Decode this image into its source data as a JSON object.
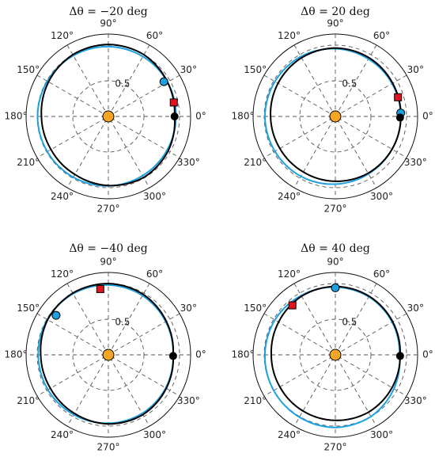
{
  "chart_data": [
    {
      "type": "polar-line",
      "title": "Δθ = −20 deg",
      "rlim": [
        0,
        1
      ],
      "rticks": [
        0.5,
        1
      ],
      "rtick_label_shown": "0.5",
      "theta_tick_labels": [
        "0°",
        "30°",
        "60°",
        "90°",
        "120°",
        "150°",
        "180°",
        "210°",
        "240°",
        "270°",
        "300°",
        "330°"
      ],
      "grid": true,
      "series": [
        {
          "color": "#1ba1e2",
          "points": [
            [
              0,
              0.95
            ],
            [
              30,
              0.96
            ],
            [
              60,
              0.97
            ],
            [
              90,
              0.98
            ],
            [
              120,
              0.985
            ],
            [
              150,
              0.99
            ],
            [
              180,
              0.995
            ],
            [
              210,
              0.99
            ],
            [
              240,
              0.985
            ],
            [
              270,
              0.975
            ],
            [
              300,
              0.96
            ],
            [
              330,
              0.95
            ],
            [
              360,
              0.95
            ]
          ]
        },
        {
          "color": "#000000",
          "points": [
            [
              0,
              0.93
            ],
            [
              30,
              0.96
            ],
            [
              60,
              1.0
            ],
            [
              90,
              1.01
            ],
            [
              120,
              1.0
            ],
            [
              150,
              0.97
            ],
            [
              180,
              0.94
            ],
            [
              210,
              0.93
            ],
            [
              240,
              0.94
            ],
            [
              270,
              0.97
            ],
            [
              300,
              0.99
            ],
            [
              330,
              0.97
            ],
            [
              360,
              0.93
            ]
          ]
        }
      ],
      "markers": [
        {
          "shape": "circle",
          "color": "#f5a623",
          "theta": 0,
          "r": 0
        },
        {
          "shape": "circle",
          "color": "#1ba1e2",
          "theta": 32,
          "r": 0.92
        },
        {
          "shape": "square",
          "color": "#e0141e",
          "theta": 12,
          "r": 0.94
        },
        {
          "shape": "circle",
          "color": "#000000",
          "theta": 0,
          "r": 0.93
        }
      ]
    },
    {
      "type": "polar-line",
      "title": "Δθ = 20 deg",
      "rlim": [
        0,
        1
      ],
      "rticks": [
        0.5,
        1
      ],
      "rtick_label_shown": "0.5",
      "theta_tick_labels": [
        "0°",
        "30°",
        "60°",
        "90°",
        "120°",
        "150°",
        "180°",
        "210°",
        "240°",
        "270°",
        "300°",
        "330°"
      ],
      "grid": true,
      "series": [
        {
          "color": "#1ba1e2",
          "points": [
            [
              0,
              0.92
            ],
            [
              30,
              0.92
            ],
            [
              60,
              0.93
            ],
            [
              90,
              0.95
            ],
            [
              120,
              0.97
            ],
            [
              150,
              0.98
            ],
            [
              180,
              0.99
            ],
            [
              210,
              0.98
            ],
            [
              240,
              0.97
            ],
            [
              270,
              0.95
            ],
            [
              300,
              0.93
            ],
            [
              330,
              0.92
            ],
            [
              360,
              0.92
            ]
          ]
        },
        {
          "color": "#000000",
          "points": [
            [
              0,
              0.92
            ],
            [
              30,
              0.93
            ],
            [
              60,
              0.95
            ],
            [
              90,
              0.96
            ],
            [
              120,
              0.95
            ],
            [
              150,
              0.93
            ],
            [
              180,
              0.91
            ],
            [
              210,
              0.9
            ],
            [
              240,
              0.9
            ],
            [
              270,
              0.91
            ],
            [
              300,
              0.92
            ],
            [
              330,
              0.92
            ],
            [
              360,
              0.92
            ]
          ]
        }
      ],
      "markers": [
        {
          "shape": "circle",
          "color": "#f5a623",
          "theta": 0,
          "r": 0
        },
        {
          "shape": "square",
          "color": "#e0141e",
          "theta": 17,
          "r": 0.92
        },
        {
          "shape": "circle",
          "color": "#1ba1e2",
          "theta": 3,
          "r": 0.92
        },
        {
          "shape": "circle",
          "color": "#000000",
          "theta": -1,
          "r": 0.91
        }
      ]
    },
    {
      "type": "polar-line",
      "title": "Δθ = −40 deg",
      "rlim": [
        0,
        1
      ],
      "rticks": [
        0.5,
        1
      ],
      "rtick_label_shown": "0.5",
      "theta_tick_labels": [
        "0°",
        "30°",
        "60°",
        "90°",
        "120°",
        "150°",
        "180°",
        "210°",
        "240°",
        "270°",
        "300°",
        "330°"
      ],
      "grid": true,
      "series": [
        {
          "color": "#1ba1e2",
          "points": [
            [
              0,
              0.91
            ],
            [
              30,
              0.93
            ],
            [
              60,
              0.96
            ],
            [
              90,
              0.98
            ],
            [
              120,
              0.99
            ],
            [
              150,
              0.99
            ],
            [
              180,
              0.985
            ],
            [
              210,
              0.98
            ],
            [
              240,
              0.97
            ],
            [
              270,
              0.96
            ],
            [
              300,
              0.95
            ],
            [
              330,
              0.93
            ],
            [
              360,
              0.91
            ]
          ]
        },
        {
          "color": "#000000",
          "points": [
            [
              0,
              0.91
            ],
            [
              30,
              0.94
            ],
            [
              60,
              0.98
            ],
            [
              90,
              1.0
            ],
            [
              120,
              1.0
            ],
            [
              150,
              0.985
            ],
            [
              180,
              0.95
            ],
            [
              210,
              0.94
            ],
            [
              240,
              0.95
            ],
            [
              270,
              0.97
            ],
            [
              300,
              0.97
            ],
            [
              330,
              0.94
            ],
            [
              360,
              0.91
            ]
          ]
        }
      ],
      "markers": [
        {
          "shape": "circle",
          "color": "#f5a623",
          "theta": 0,
          "r": 0
        },
        {
          "shape": "square",
          "color": "#e0141e",
          "theta": 97,
          "r": 0.93
        },
        {
          "shape": "circle",
          "color": "#1ba1e2",
          "theta": 143,
          "r": 0.92
        },
        {
          "shape": "circle",
          "color": "#000000",
          "theta": -1,
          "r": 0.91
        }
      ]
    },
    {
      "type": "polar-line",
      "title": "Δθ = 40 deg",
      "rlim": [
        0,
        1
      ],
      "rticks": [
        0.5,
        1
      ],
      "rtick_label_shown": "0.5",
      "theta_tick_labels": [
        "0°",
        "30°",
        "60°",
        "90°",
        "120°",
        "150°",
        "180°",
        "210°",
        "240°",
        "270°",
        "300°",
        "330°"
      ],
      "grid": true,
      "series": [
        {
          "color": "#1ba1e2",
          "points": [
            [
              0,
              0.9
            ],
            [
              30,
              0.92
            ],
            [
              60,
              0.94
            ],
            [
              90,
              0.95
            ],
            [
              120,
              0.96
            ],
            [
              150,
              0.98
            ],
            [
              180,
              0.99
            ],
            [
              210,
              1.0
            ],
            [
              240,
              1.01
            ],
            [
              270,
              1.02
            ],
            [
              300,
              1.0
            ],
            [
              330,
              0.95
            ],
            [
              360,
              0.9
            ]
          ]
        },
        {
          "color": "#000000",
          "points": [
            [
              0,
              0.91
            ],
            [
              30,
              0.93
            ],
            [
              60,
              0.95
            ],
            [
              90,
              0.96
            ],
            [
              120,
              0.95
            ],
            [
              150,
              0.92
            ],
            [
              180,
              0.9
            ],
            [
              210,
              0.9
            ],
            [
              240,
              0.91
            ],
            [
              270,
              0.92
            ],
            [
              300,
              0.93
            ],
            [
              330,
              0.92
            ],
            [
              360,
              0.91
            ]
          ]
        }
      ],
      "markers": [
        {
          "shape": "circle",
          "color": "#f5a623",
          "theta": 0,
          "r": 0
        },
        {
          "shape": "circle",
          "color": "#1ba1e2",
          "theta": 90,
          "r": 0.94
        },
        {
          "shape": "square",
          "color": "#e0141e",
          "theta": 131,
          "r": 0.92
        },
        {
          "shape": "circle",
          "color": "#000000",
          "theta": -1,
          "r": 0.91
        }
      ]
    }
  ]
}
